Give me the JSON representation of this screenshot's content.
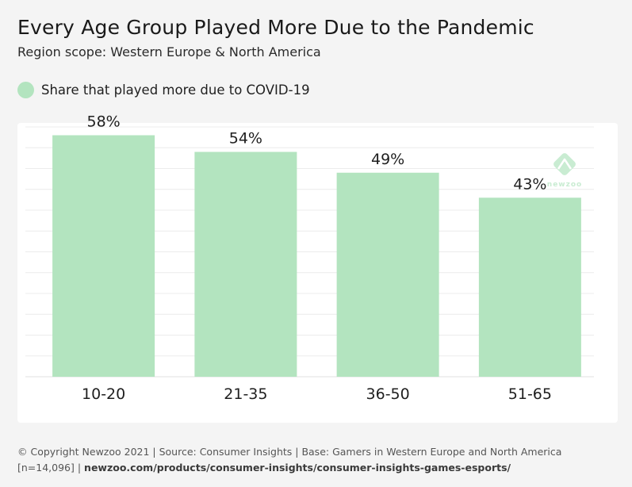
{
  "title": "Every Age Group Played More Due to the Pandemic",
  "subtitle": "Region scope: Western Europe & North America",
  "colors": {
    "bar": "#b3e4bf",
    "grid": "#ececec",
    "logo": "#c9ecd2",
    "panel": "#ffffff",
    "background": "#f4f4f4"
  },
  "logo": {
    "text": "newzoo"
  },
  "chart_data": {
    "type": "bar",
    "categories": [
      "10-20",
      "21-35",
      "36-50",
      "51-65"
    ],
    "series": [
      {
        "name": "Share that played more due to COVID-19",
        "values": [
          58,
          54,
          49,
          43
        ]
      }
    ],
    "data_labels": [
      "58%",
      "54%",
      "49%",
      "43%"
    ],
    "ylim": [
      0,
      60
    ],
    "grid": true,
    "legend": "top-left"
  },
  "footer": {
    "line1": "© Copyright Newzoo 2021 | Source: Consumer Insights | Base: Gamers in Western Europe and North America",
    "line2_prefix": "[n=14,096] | ",
    "line2_link": "newzoo.com/products/consumer-insights/consumer-insights-games-esports/"
  }
}
